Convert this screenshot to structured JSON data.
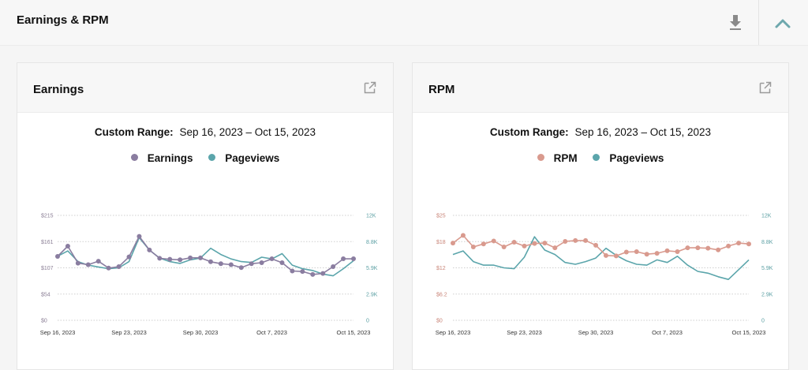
{
  "header": {
    "title": "Earnings & RPM"
  },
  "colors": {
    "earnings": "#8a7da0",
    "pageviews": "#5ba5ab",
    "rpm": "#d99a8e",
    "left_axis_earnings": "#8b7f96",
    "left_axis_rpm": "#c98578",
    "right_axis": "#5b9fa3"
  },
  "icons": {
    "download": "download-icon",
    "collapse": "chevron-up-icon",
    "external": "external-link-icon"
  },
  "panels": [
    {
      "title": "Earnings",
      "range_label": "Custom Range:",
      "range_value": "Sep 16, 2023 – Oct 15, 2023",
      "legend": [
        "Earnings",
        "Pageviews"
      ]
    },
    {
      "title": "RPM",
      "range_label": "Custom Range:",
      "range_value": "Sep 16, 2023 – Oct 15, 2023",
      "legend": [
        "RPM",
        "Pageviews"
      ]
    }
  ],
  "chart_data": [
    {
      "type": "line",
      "categories": [
        "Sep 16, 2023",
        "Sep 17",
        "Sep 18",
        "Sep 19",
        "Sep 20",
        "Sep 21",
        "Sep 22",
        "Sep 23",
        "Sep 24",
        "Sep 25",
        "Sep 26",
        "Sep 27",
        "Sep 28",
        "Sep 29",
        "Sep 30",
        "Oct 1",
        "Oct 2",
        "Oct 3",
        "Oct 4",
        "Oct 5",
        "Oct 6",
        "Oct 7",
        "Oct 8",
        "Oct 9",
        "Oct 10",
        "Oct 11",
        "Oct 12",
        "Oct 13",
        "Oct 14",
        "Oct 15"
      ],
      "x_tick_labels": [
        "Sep 16, 2023",
        "Sep 23, 2023",
        "Sep 30, 2023",
        "Oct 7, 2023",
        "Oct 15, 2023"
      ],
      "x_tick_indices": [
        0,
        7,
        14,
        21,
        29
      ],
      "left_axis": {
        "ticks": [
          "$0",
          "$54",
          "$107",
          "$161",
          "$215"
        ],
        "ylim": [
          0,
          215
        ]
      },
      "right_axis": {
        "ticks": [
          "0",
          "2.9K",
          "5.9K",
          "8.8K",
          "12K"
        ],
        "ylim": [
          0,
          11.8
        ]
      },
      "series": [
        {
          "name": "Earnings",
          "axis": "left",
          "markers": true,
          "values": [
            131,
            152,
            117,
            114,
            121,
            107,
            110,
            130,
            172,
            144,
            127,
            125,
            124,
            128,
            128,
            120,
            116,
            114,
            108,
            116,
            118,
            126,
            118,
            101,
            100,
            94,
            96,
            110,
            126,
            126
          ]
        },
        {
          "name": "Pageviews",
          "axis": "right",
          "markers": false,
          "values": [
            7.2,
            7.8,
            6.6,
            6.2,
            6.0,
            5.8,
            5.9,
            6.6,
            9.3,
            7.9,
            7.0,
            6.6,
            6.4,
            6.8,
            7.0,
            8.1,
            7.4,
            6.9,
            6.6,
            6.5,
            7.1,
            6.9,
            7.5,
            6.2,
            5.8,
            5.6,
            5.2,
            5.0,
            5.8,
            6.7
          ]
        }
      ]
    },
    {
      "type": "line",
      "categories": [
        "Sep 16, 2023",
        "Sep 17",
        "Sep 18",
        "Sep 19",
        "Sep 20",
        "Sep 21",
        "Sep 22",
        "Sep 23",
        "Sep 24",
        "Sep 25",
        "Sep 26",
        "Sep 27",
        "Sep 28",
        "Sep 29",
        "Sep 30",
        "Oct 1",
        "Oct 2",
        "Oct 3",
        "Oct 4",
        "Oct 5",
        "Oct 6",
        "Oct 7",
        "Oct 8",
        "Oct 9",
        "Oct 10",
        "Oct 11",
        "Oct 12",
        "Oct 13",
        "Oct 14",
        "Oct 15"
      ],
      "x_tick_labels": [
        "Sep 16, 2023",
        "Sep 23, 2023",
        "Sep 30, 2023",
        "Oct 7, 2023",
        "Oct 15, 2023"
      ],
      "x_tick_indices": [
        0,
        7,
        14,
        21,
        29
      ],
      "left_axis": {
        "ticks": [
          "$0",
          "$6.2",
          "$12",
          "$18",
          "$25"
        ],
        "ylim": [
          0,
          24.6
        ]
      },
      "right_axis": {
        "ticks": [
          "0",
          "2.9K",
          "5.9K",
          "8.8K",
          "12K"
        ],
        "ylim": [
          0,
          11.8
        ]
      },
      "series": [
        {
          "name": "RPM",
          "axis": "left",
          "markers": true,
          "values": [
            18.1,
            19.9,
            17.2,
            17.9,
            18.6,
            17.2,
            18.3,
            17.4,
            18.0,
            18.1,
            17.0,
            18.5,
            18.7,
            18.7,
            17.6,
            15.2,
            15.1,
            16.0,
            16.1,
            15.5,
            15.7,
            16.3,
            16.1,
            17.0,
            17.0,
            16.9,
            16.5,
            17.4,
            18.1,
            17.9
          ]
        },
        {
          "name": "Pageviews",
          "axis": "right",
          "markers": false,
          "values": [
            7.4,
            7.8,
            6.6,
            6.2,
            6.2,
            5.9,
            5.8,
            7.1,
            9.4,
            7.9,
            7.4,
            6.5,
            6.3,
            6.6,
            7.0,
            8.1,
            7.3,
            6.7,
            6.3,
            6.2,
            6.8,
            6.5,
            7.2,
            6.2,
            5.5,
            5.3,
            4.9,
            4.6,
            5.7,
            6.8
          ]
        }
      ]
    }
  ]
}
